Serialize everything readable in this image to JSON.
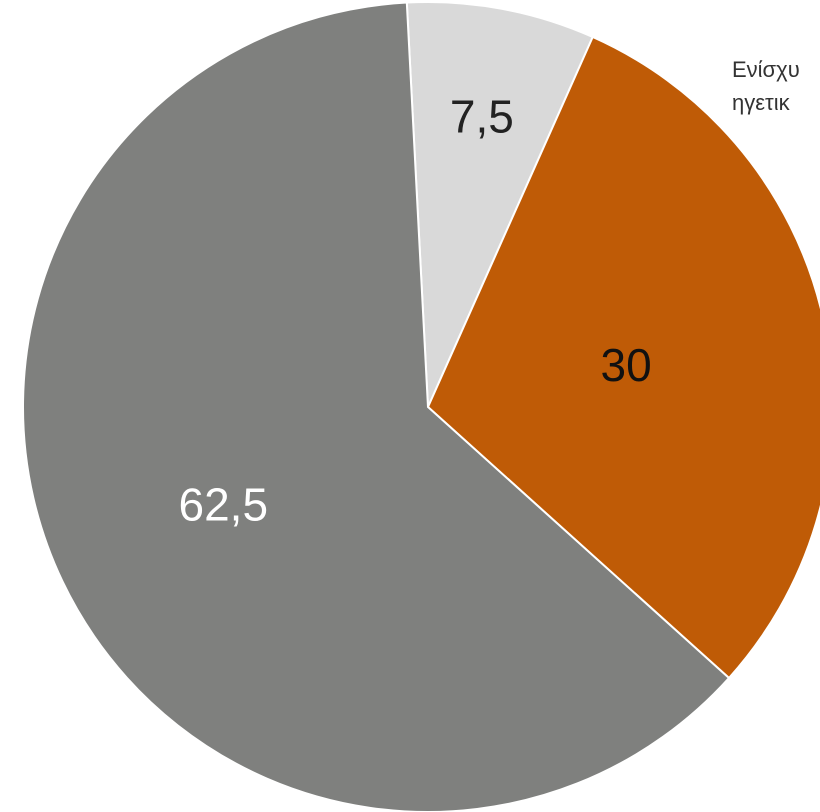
{
  "chart_data": {
    "type": "pie",
    "title": "",
    "slices": [
      {
        "label": "7,5",
        "value": 7.5,
        "color": "#d9d9d9",
        "label_color": "#222222"
      },
      {
        "label": "30",
        "value": 30,
        "color": "#bf5b06",
        "label_color": "#111111"
      },
      {
        "label": "62,5",
        "value": 62.5,
        "color": "#7f807e",
        "label_color": "#ffffff"
      }
    ],
    "legend_text_visible": [
      "Ενίσχυ",
      "ηγετικ"
    ],
    "legend_placement": "top-right"
  }
}
